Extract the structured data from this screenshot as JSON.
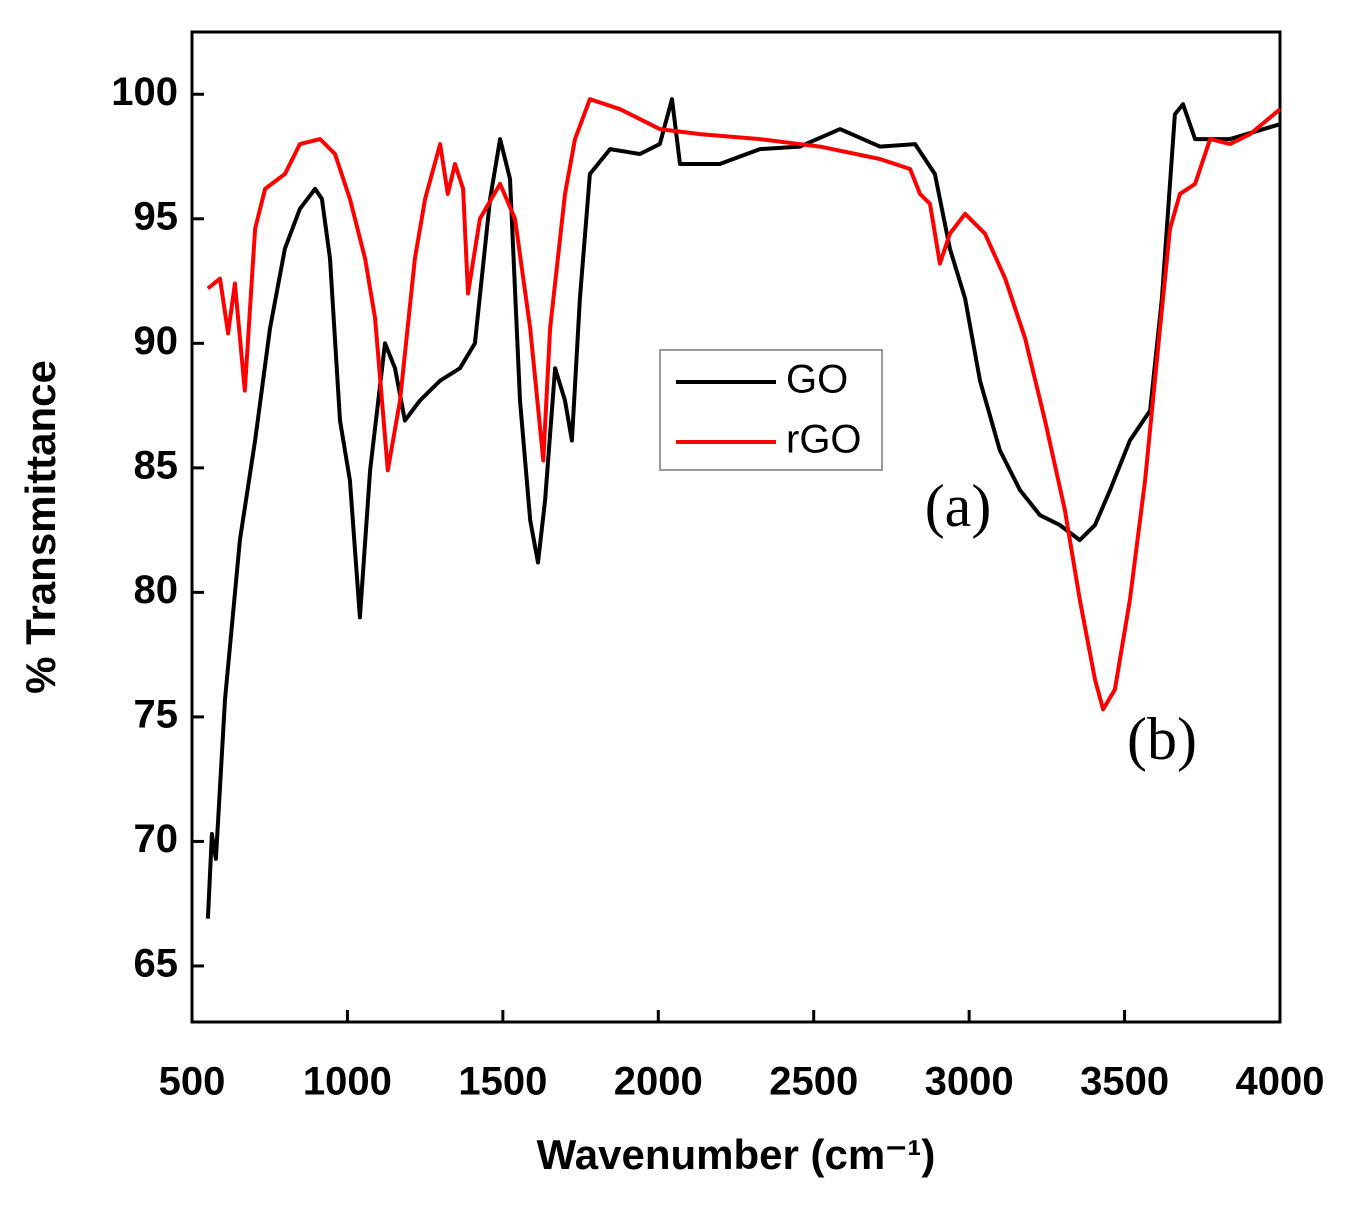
{
  "chart_data": {
    "type": "line",
    "xlabel": "Wavenumber (cm⁻¹)",
    "ylabel": "% Transmittance",
    "xlim": [
      500,
      4000
    ],
    "ylim": [
      62.75,
      102.5
    ],
    "xticks": [
      500,
      1000,
      1500,
      2000,
      2500,
      3000,
      3500,
      4000
    ],
    "yticks": [
      65,
      70,
      75,
      80,
      85,
      90,
      95,
      100
    ],
    "annotations": [
      "(a)",
      "(b)"
    ],
    "series": [
      {
        "name": "GO",
        "color": "#000000",
        "x": [
          551,
          564,
          577,
          606,
          654,
          703,
          751,
          799,
          847,
          896,
          918,
          944,
          976,
          1008,
          1040,
          1073,
          1121,
          1153,
          1185,
          1233,
          1298,
          1362,
          1410,
          1459,
          1491,
          1523,
          1555,
          1588,
          1613,
          1636,
          1668,
          1700,
          1722,
          1748,
          1780,
          1845,
          1941,
          2005,
          2044,
          2070,
          2134,
          2198,
          2327,
          2456,
          2585,
          2713,
          2826,
          2890,
          2938,
          2987,
          3035,
          3099,
          3164,
          3228,
          3292,
          3356,
          3405,
          3453,
          3517,
          3582,
          3620,
          3662,
          3688,
          3727,
          3839,
          4000
        ],
        "values": [
          66.9,
          70.3,
          69.3,
          75.7,
          82.1,
          86.1,
          90.6,
          93.8,
          95.4,
          96.2,
          95.8,
          93.4,
          86.9,
          84.5,
          79.0,
          84.9,
          90.0,
          89.0,
          86.9,
          87.7,
          88.5,
          89.0,
          90.0,
          95.8,
          98.2,
          96.6,
          87.7,
          82.9,
          81.2,
          83.7,
          89.0,
          87.7,
          86.1,
          91.8,
          96.8,
          97.8,
          97.6,
          98.0,
          99.8,
          97.2,
          97.2,
          97.2,
          97.8,
          97.9,
          98.6,
          97.9,
          98.0,
          96.8,
          93.8,
          91.8,
          88.5,
          85.7,
          84.1,
          83.1,
          82.7,
          82.1,
          82.7,
          84.1,
          86.1,
          87.3,
          91.8,
          99.2,
          99.6,
          98.2,
          98.2,
          98.8
        ]
      },
      {
        "name": "rGO",
        "color": "#ff0000",
        "x": [
          551,
          590,
          616,
          638,
          670,
          703,
          735,
          799,
          847,
          912,
          960,
          1008,
          1057,
          1089,
          1130,
          1169,
          1217,
          1250,
          1298,
          1323,
          1346,
          1372,
          1388,
          1426,
          1491,
          1539,
          1588,
          1630,
          1652,
          1700,
          1732,
          1780,
          1877,
          2005,
          2134,
          2327,
          2520,
          2713,
          2810,
          2842,
          2874,
          2906,
          2938,
          2987,
          3051,
          3116,
          3180,
          3244,
          3308,
          3356,
          3405,
          3431,
          3469,
          3517,
          3566,
          3614,
          3646,
          3678,
          3727,
          3775,
          3839,
          3904,
          4000
        ],
        "values": [
          92.2,
          92.6,
          90.4,
          92.4,
          88.1,
          94.6,
          96.2,
          96.8,
          98.0,
          98.2,
          97.6,
          95.8,
          93.4,
          91.0,
          84.9,
          87.7,
          93.4,
          95.8,
          98.0,
          96.0,
          97.2,
          96.2,
          92.0,
          95.0,
          96.4,
          95.0,
          90.6,
          85.3,
          90.6,
          96.0,
          98.2,
          99.8,
          99.4,
          98.6,
          98.4,
          98.2,
          97.9,
          97.4,
          97.0,
          96.0,
          95.6,
          93.2,
          94.4,
          95.2,
          94.4,
          92.6,
          90.2,
          86.9,
          83.3,
          79.7,
          76.5,
          75.3,
          76.1,
          79.7,
          84.5,
          90.6,
          94.6,
          96.0,
          96.4,
          98.2,
          98.0,
          98.4,
          99.4
        ]
      }
    ]
  }
}
